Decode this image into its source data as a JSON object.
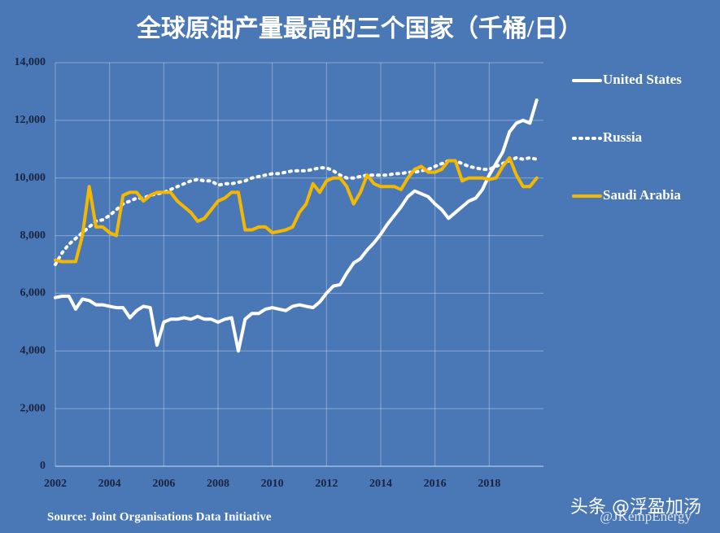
{
  "chart_data": {
    "type": "line",
    "title": "全球原油产量最高的三个国家（千桶/日）",
    "source": "Source: Joint Organisations Data Initiative",
    "annotations": [
      "@JKempEnergy",
      "头条 @浮盈加汤"
    ],
    "x": [
      2002,
      2002.25,
      2002.5,
      2002.75,
      2003,
      2003.25,
      2003.5,
      2003.75,
      2004,
      2004.25,
      2004.5,
      2004.75,
      2005,
      2005.25,
      2005.5,
      2005.75,
      2006,
      2006.25,
      2006.5,
      2006.75,
      2007,
      2007.25,
      2007.5,
      2007.75,
      2008,
      2008.25,
      2008.5,
      2008.75,
      2009,
      2009.25,
      2009.5,
      2009.75,
      2010,
      2010.25,
      2010.5,
      2010.75,
      2011,
      2011.25,
      2011.5,
      2011.75,
      2012,
      2012.25,
      2012.5,
      2012.75,
      2013,
      2013.25,
      2013.5,
      2013.75,
      2014,
      2014.25,
      2014.5,
      2014.75,
      2015,
      2015.25,
      2015.5,
      2015.75,
      2016,
      2016.25,
      2016.5,
      2016.75,
      2017,
      2017.25,
      2017.5,
      2017.75,
      2018,
      2018.25,
      2018.5,
      2018.75,
      2019,
      2019.25,
      2019.5,
      2019.75
    ],
    "series": [
      {
        "name": "United States",
        "color": "#ffffff",
        "dash": "solid",
        "values": [
          5850,
          5900,
          5900,
          5450,
          5800,
          5750,
          5600,
          5600,
          5550,
          5500,
          5500,
          5150,
          5400,
          5550,
          5500,
          4200,
          5000,
          5100,
          5100,
          5150,
          5100,
          5200,
          5100,
          5100,
          5000,
          5100,
          5150,
          4000,
          5100,
          5300,
          5300,
          5450,
          5500,
          5450,
          5400,
          5550,
          5600,
          5550,
          5500,
          5700,
          6000,
          6250,
          6300,
          6700,
          7050,
          7200,
          7500,
          7750,
          8050,
          8400,
          8700,
          9000,
          9350,
          9550,
          9450,
          9350,
          9100,
          8900,
          8600,
          8800,
          9000,
          9200,
          9300,
          9600,
          10100,
          10500,
          10900,
          11600,
          11900,
          12000,
          11900,
          12700
        ]
      },
      {
        "name": "Russia",
        "color": "#ffffff",
        "dash": "dotted",
        "values": [
          7000,
          7400,
          7700,
          7900,
          8100,
          8300,
          8500,
          8550,
          8700,
          8900,
          9100,
          9200,
          9300,
          9300,
          9400,
          9450,
          9500,
          9600,
          9700,
          9800,
          9900,
          9950,
          9900,
          9900,
          9750,
          9800,
          9800,
          9850,
          9900,
          10000,
          10050,
          10100,
          10150,
          10150,
          10200,
          10250,
          10250,
          10250,
          10300,
          10350,
          10350,
          10250,
          10100,
          10000,
          10000,
          10050,
          10100,
          10100,
          10100,
          10100,
          10150,
          10150,
          10200,
          10200,
          10250,
          10300,
          10400,
          10500,
          10600,
          10600,
          10500,
          10400,
          10350,
          10300,
          10300,
          10400,
          10500,
          10600,
          10700,
          10650,
          10700,
          10650
        ]
      },
      {
        "name": "Saudi Arabia",
        "color": "#f5b800",
        "dash": "solid",
        "values": [
          7150,
          7100,
          7100,
          7100,
          8000,
          9700,
          8300,
          8300,
          8100,
          8000,
          9400,
          9500,
          9500,
          9200,
          9400,
          9500,
          9500,
          9500,
          9200,
          9000,
          8800,
          8500,
          8600,
          8900,
          9200,
          9300,
          9500,
          9500,
          8200,
          8200,
          8300,
          8300,
          8100,
          8150,
          8200,
          8300,
          8800,
          9100,
          9800,
          9500,
          9900,
          10000,
          10000,
          9700,
          9100,
          9500,
          10100,
          9800,
          9700,
          9700,
          9700,
          9600,
          10000,
          10300,
          10400,
          10200,
          10200,
          10300,
          10600,
          10600,
          9900,
          10000,
          10000,
          10000,
          9950,
          10000,
          10400,
          10700,
          10100,
          9700,
          9700,
          10000
        ]
      }
    ],
    "xlim": [
      2002,
      2020
    ],
    "xticks": [
      2002,
      2004,
      2006,
      2008,
      2010,
      2012,
      2014,
      2016,
      2018
    ],
    "ylim": [
      0,
      14000
    ],
    "yticks": [
      0,
      {
        "value": 2000,
        "label": "2,000"
      },
      {
        "value": 4000,
        "label": "4,000"
      },
      {
        "value": 6000,
        "label": "6,000"
      },
      {
        "value": 8000,
        "label": "8,000"
      },
      {
        "value": 10000,
        "label": "10,000"
      },
      {
        "value": 12000,
        "label": "12,000"
      },
      {
        "value": 14000,
        "label": "14,000"
      }
    ],
    "grid": true
  }
}
